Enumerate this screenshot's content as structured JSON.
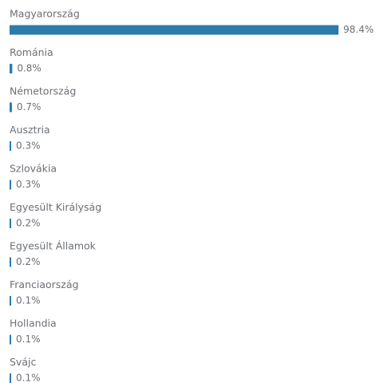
{
  "chart_data": {
    "type": "bar",
    "orientation": "horizontal",
    "color": "#2b7bab",
    "categories": [
      "Magyarország",
      "Románia",
      "Németország",
      "Ausztria",
      "Szlovákia",
      "Egyesült Királyság",
      "Egyesült Államok",
      "Franciaország",
      "Hollandia",
      "Svájc"
    ],
    "values": [
      98.4,
      0.8,
      0.7,
      0.3,
      0.3,
      0.2,
      0.2,
      0.1,
      0.1,
      0.1
    ],
    "value_labels": [
      "98.4%",
      "0.8%",
      "0.7%",
      "0.3%",
      "0.3%",
      "0.2%",
      "0.2%",
      "0.1%",
      "0.1%",
      "0.1%"
    ]
  }
}
